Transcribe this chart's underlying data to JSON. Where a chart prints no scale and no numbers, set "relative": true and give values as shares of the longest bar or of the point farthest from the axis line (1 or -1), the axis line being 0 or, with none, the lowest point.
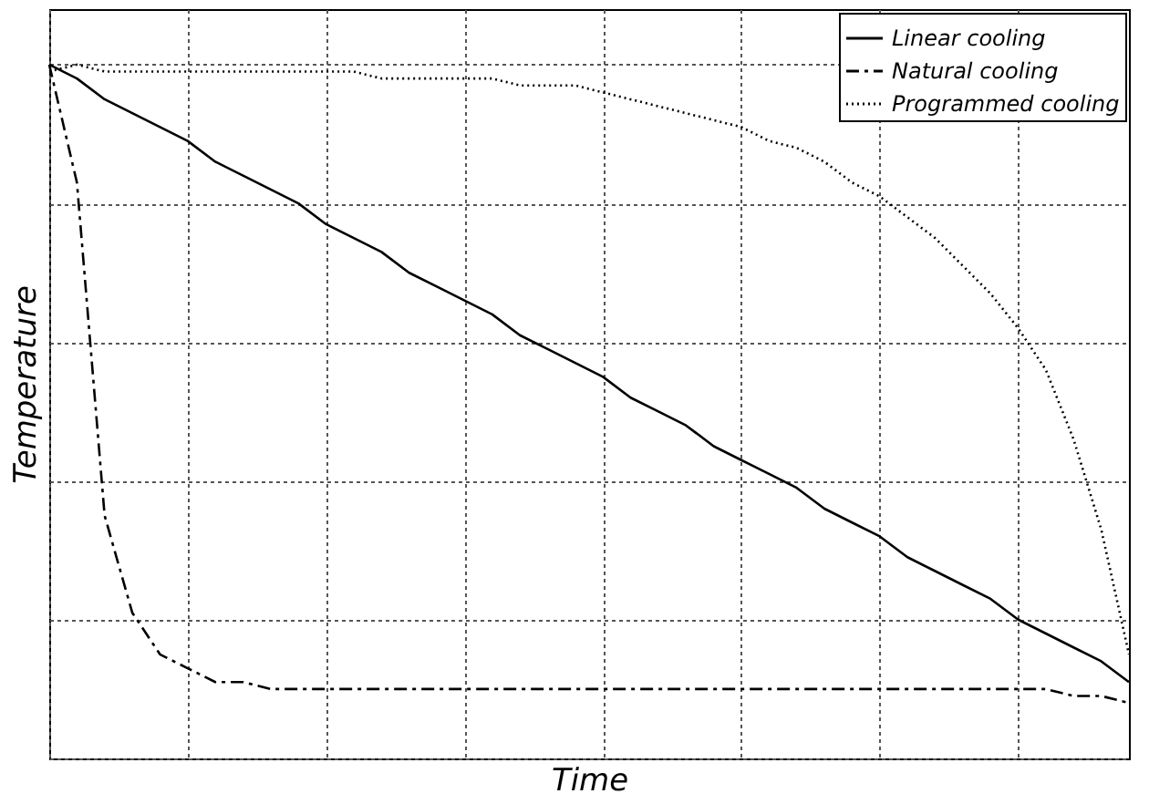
{
  "chart_data": {
    "type": "line",
    "relative": true,
    "xlabel": "Time",
    "ylabel": "Temperature",
    "categories": [
      null,
      null,
      null,
      null,
      null,
      null,
      null,
      null,
      null,
      null,
      null,
      null,
      null,
      null,
      null,
      null,
      null,
      null,
      null,
      null,
      null,
      null,
      null,
      null,
      null,
      null,
      null,
      null,
      null,
      null,
      null,
      null,
      null,
      null,
      null,
      null,
      null,
      null,
      null,
      null
    ],
    "series": [
      {
        "name": "Linear cooling",
        "color": "#000000",
        "line_style": "solid",
        "values": [
          1.0,
          0.98,
          0.95,
          0.93,
          0.91,
          0.89,
          0.86,
          0.84,
          0.82,
          0.8,
          0.77,
          0.75,
          0.73,
          0.7,
          0.68,
          0.66,
          0.64,
          0.61,
          0.59,
          0.57,
          0.55,
          0.52,
          0.5,
          0.48,
          0.45,
          0.43,
          0.41,
          0.39,
          0.36,
          0.34,
          0.32,
          0.29,
          0.27,
          0.25,
          0.23,
          0.2,
          0.18,
          0.16,
          0.14,
          0.11
        ]
      },
      {
        "name": "Natural cooling",
        "color": "#000000",
        "line_style": "dashed",
        "values": [
          1.0,
          0.83,
          0.35,
          0.21,
          0.15,
          0.13,
          0.11,
          0.11,
          0.1,
          0.1,
          0.1,
          0.1,
          0.1,
          0.1,
          0.1,
          0.1,
          0.1,
          0.1,
          0.1,
          0.1,
          0.1,
          0.1,
          0.1,
          0.1,
          0.1,
          0.1,
          0.1,
          0.1,
          0.1,
          0.1,
          0.1,
          0.1,
          0.1,
          0.1,
          0.1,
          0.1,
          0.1,
          0.09,
          0.09,
          0.08
        ]
      },
      {
        "name": "Programmed cooling",
        "color": "#000000",
        "line_style": "dotted",
        "values": [
          0.99,
          1.0,
          0.99,
          0.99,
          0.99,
          0.99,
          0.99,
          0.99,
          0.99,
          0.99,
          0.99,
          0.99,
          0.98,
          0.98,
          0.98,
          0.98,
          0.98,
          0.97,
          0.97,
          0.97,
          0.96,
          0.95,
          0.94,
          0.93,
          0.92,
          0.91,
          0.89,
          0.88,
          0.86,
          0.83,
          0.81,
          0.78,
          0.75,
          0.71,
          0.67,
          0.62,
          0.56,
          0.46,
          0.33,
          0.15
        ]
      }
    ],
    "grid": true,
    "legend": "top right",
    "marker": "none"
  }
}
